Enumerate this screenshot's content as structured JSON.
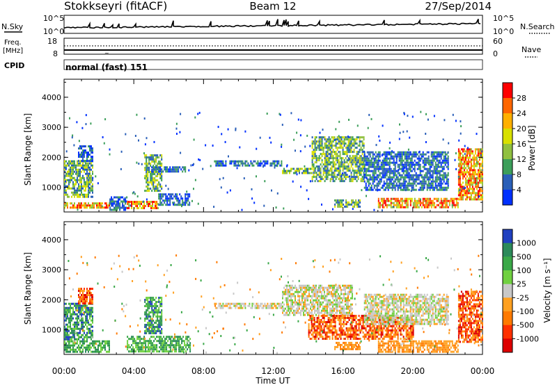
{
  "header": {
    "station": "Stokkseyri (fitACF)",
    "beam": "Beam 12",
    "date": "27/Sep/2014"
  },
  "top_panels": {
    "nsky_label": "N.Sky",
    "nsearch_label": "N.Search",
    "noise_ticks": [
      "10^5",
      "10^0"
    ],
    "freq_label_1": "Freq.",
    "freq_label_2": "[MHz]",
    "freq_ticks": [
      "18",
      "8"
    ],
    "nave_label": "Nave",
    "nave_ticks": [
      "60",
      "0"
    ],
    "cpid_label": "CPID",
    "cpid_value": "normal (fast) 151"
  },
  "chart_data": [
    {
      "type": "heatmap",
      "panel": "power",
      "xlabel": "",
      "ylabel": "Slant Range [km]",
      "x_ticks": [
        "00:00",
        "04:00",
        "08:00",
        "12:00",
        "16:00",
        "20:00",
        "00:00"
      ],
      "xlim": [
        0,
        24
      ],
      "ylim": [
        180,
        4600
      ],
      "y_ticks": [
        1000,
        2000,
        3000,
        4000
      ],
      "colorbar": {
        "label": "Power [dB]",
        "ticks": [
          "28",
          "24",
          "20",
          "16",
          "12",
          "8",
          "4"
        ],
        "colors": [
          "#ff0000",
          "#ff6600",
          "#ffb000",
          "#d8e000",
          "#90c040",
          "#3c9e5a",
          "#2a5fb8",
          "#0030ff"
        ]
      },
      "echo_regions": [
        {
          "t": [
            0.0,
            2.6
          ],
          "r": [
            300,
            500
          ],
          "level": "strong"
        },
        {
          "t": [
            0.0,
            1.6
          ],
          "r": [
            700,
            1900
          ],
          "level": "moderate"
        },
        {
          "t": [
            0.8,
            1.6
          ],
          "r": [
            1900,
            2400
          ],
          "level": "weak"
        },
        {
          "t": [
            2.6,
            3.6
          ],
          "r": [
            250,
            700
          ],
          "level": "weak"
        },
        {
          "t": [
            3.6,
            5.4
          ],
          "r": [
            280,
            550
          ],
          "level": "strong"
        },
        {
          "t": [
            4.6,
            5.6
          ],
          "r": [
            900,
            2100
          ],
          "level": "moderate"
        },
        {
          "t": [
            5.4,
            7.2
          ],
          "r": [
            450,
            800
          ],
          "level": "weak"
        },
        {
          "t": [
            5.0,
            7.0
          ],
          "r": [
            1550,
            1700
          ],
          "level": "weak"
        },
        {
          "t": [
            8.6,
            12.5
          ],
          "r": [
            1700,
            1900
          ],
          "level": "weak"
        },
        {
          "t": [
            12.5,
            14.2
          ],
          "r": [
            1450,
            1650
          ],
          "level": "moderate"
        },
        {
          "t": [
            14.2,
            17.2
          ],
          "r": [
            1200,
            2700
          ],
          "level": "moderate"
        },
        {
          "t": [
            15.5,
            17.0
          ],
          "r": [
            380,
            600
          ],
          "level": "moderate"
        },
        {
          "t": [
            18.0,
            22.6
          ],
          "r": [
            350,
            650
          ],
          "level": "strong"
        },
        {
          "t": [
            17.2,
            22.0
          ],
          "r": [
            900,
            2200
          ],
          "level": "weak"
        },
        {
          "t": [
            22.6,
            24.0
          ],
          "r": [
            600,
            2300
          ],
          "level": "strong"
        }
      ]
    },
    {
      "type": "heatmap",
      "panel": "velocity",
      "xlabel": "Time UT",
      "ylabel": "Slant Range [km]",
      "x_ticks": [
        "00:00",
        "04:00",
        "08:00",
        "12:00",
        "16:00",
        "20:00",
        "00:00"
      ],
      "xlim": [
        0,
        24
      ],
      "ylim": [
        180,
        4600
      ],
      "y_ticks": [
        1000,
        2000,
        3000,
        4000
      ],
      "colorbar": {
        "label": "Velocity [m s⁻¹]",
        "ticks": [
          "1000",
          "500",
          "100",
          "25",
          "-25",
          "-100",
          "-500",
          "-1000"
        ],
        "colors": [
          "#2040c0",
          "#2c8a5a",
          "#3aa848",
          "#70d040",
          "#c8c8c8",
          "#ffa020",
          "#ff7a00",
          "#ff3000",
          "#dd0000"
        ]
      },
      "echo_regions": [
        {
          "t": [
            0.0,
            2.6
          ],
          "r": [
            250,
            650
          ],
          "level": "toward_small"
        },
        {
          "t": [
            0.0,
            1.6
          ],
          "r": [
            700,
            1900
          ],
          "level": "toward_med"
        },
        {
          "t": [
            0.8,
            1.6
          ],
          "r": [
            1900,
            2400
          ],
          "level": "away_med"
        },
        {
          "t": [
            3.6,
            7.2
          ],
          "r": [
            280,
            800
          ],
          "level": "toward_small"
        },
        {
          "t": [
            4.6,
            5.6
          ],
          "r": [
            900,
            2100
          ],
          "level": "toward_med"
        },
        {
          "t": [
            8.6,
            12.5
          ],
          "r": [
            1750,
            1900
          ],
          "level": "near_zero"
        },
        {
          "t": [
            12.5,
            16.5
          ],
          "r": [
            1500,
            2500
          ],
          "level": "near_zero"
        },
        {
          "t": [
            15.5,
            17.0
          ],
          "r": [
            380,
            600
          ],
          "level": "away_small"
        },
        {
          "t": [
            18.0,
            22.6
          ],
          "r": [
            300,
            650
          ],
          "level": "away_small"
        },
        {
          "t": [
            14.0,
            20.0
          ],
          "r": [
            700,
            1500
          ],
          "level": "away_med"
        },
        {
          "t": [
            17.2,
            22.0
          ],
          "r": [
            1200,
            2200
          ],
          "level": "near_zero"
        },
        {
          "t": [
            22.6,
            24.0
          ],
          "r": [
            600,
            2300
          ],
          "level": "away_med"
        }
      ]
    }
  ]
}
